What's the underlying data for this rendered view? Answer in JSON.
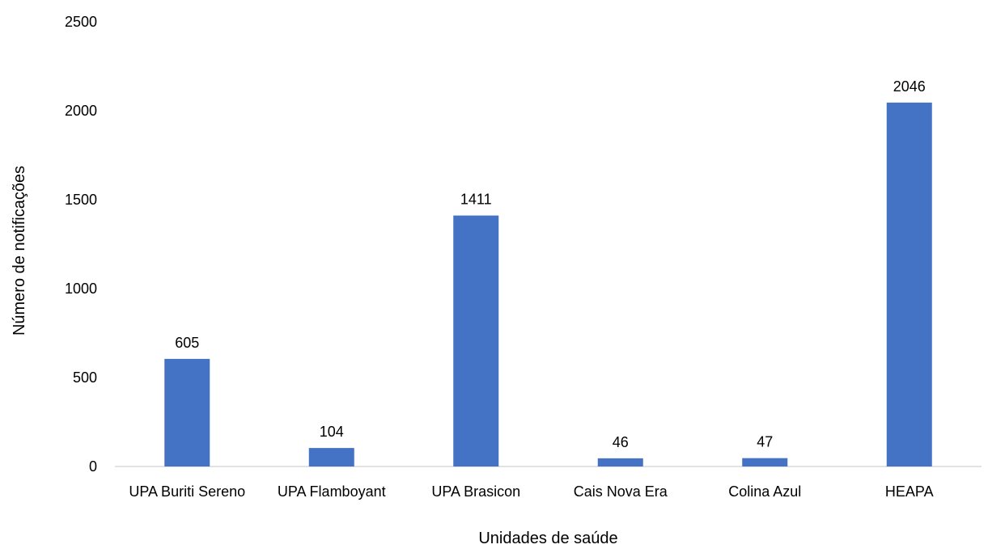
{
  "chart_data": {
    "type": "bar",
    "title": "",
    "xlabel": "Unidades de saúde",
    "ylabel": "Número de notificações",
    "categories": [
      "UPA Buriti Sereno",
      "UPA Flamboyant",
      "UPA Brasicon",
      "Cais Nova Era",
      "Colina Azul",
      "HEAPA"
    ],
    "values": [
      605,
      104,
      1411,
      46,
      47,
      2046
    ],
    "ylim": [
      0,
      2500
    ],
    "yticks": [
      0,
      500,
      1000,
      1500,
      2000,
      2500
    ],
    "grid": false,
    "legend": "none",
    "data_labels": true,
    "colors": {
      "bar": "#4472C4",
      "axis": "#D9D9D9",
      "text": "#000000"
    }
  }
}
